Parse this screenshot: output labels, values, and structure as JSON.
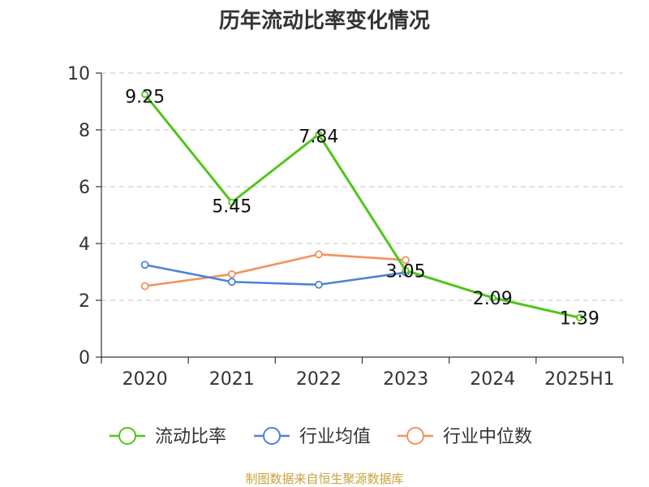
{
  "chart_data": {
    "type": "line",
    "title": "历年流动比率变化情况",
    "categories": [
      "2020",
      "2021",
      "2022",
      "2023",
      "2024",
      "2025H1"
    ],
    "ylim": [
      0,
      10
    ],
    "yticks": [
      0,
      2,
      4,
      6,
      8,
      10
    ],
    "grid": true,
    "legend_position": "bottom",
    "series": [
      {
        "name": "流动比率",
        "color": "#52c41a",
        "values": [
          9.25,
          5.45,
          7.84,
          3.05,
          2.09,
          1.39
        ],
        "labels": [
          "9.25",
          "5.45",
          "7.84",
          "3.05",
          "2.09",
          "1.39"
        ]
      },
      {
        "name": "行业均值",
        "color": "#4f81d9",
        "values": [
          3.25,
          2.65,
          2.55,
          2.98,
          null,
          null
        ]
      },
      {
        "name": "行业中位数",
        "color": "#f4915c",
        "values": [
          2.5,
          2.92,
          3.62,
          3.42,
          null,
          null
        ]
      }
    ],
    "source": "制图数据来自恒生聚源数据库"
  }
}
